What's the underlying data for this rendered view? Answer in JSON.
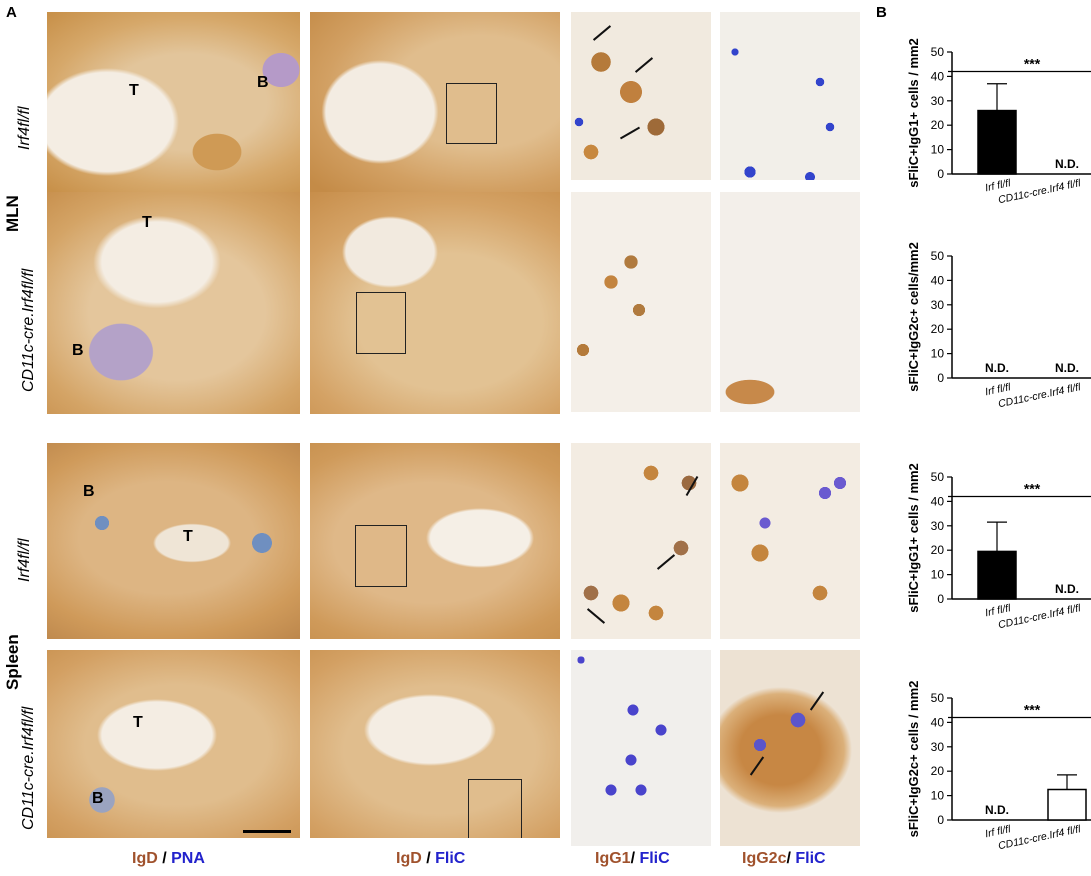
{
  "panel_a_label": "A",
  "panel_b_label": "B",
  "groups": {
    "mln": "MLN",
    "spleen": "Spleen"
  },
  "rows": [
    {
      "genotype": "Irf4fl/fl"
    },
    {
      "genotype": "CD11c-cre.Irf4fl/fl"
    },
    {
      "genotype": "Irf4fl/fl"
    },
    {
      "genotype": "CD11c-cre.Irf4fl/fl"
    }
  ],
  "region_labels": {
    "t_zone": "T",
    "b_zone": "B"
  },
  "column_labels": [
    {
      "first": "IgD",
      "sep": " / ",
      "second": "PNA"
    },
    {
      "first": "IgD",
      "sep": " / ",
      "second": "FliC"
    },
    {
      "first": "IgG1",
      "sep": "/ ",
      "second": "FliC"
    },
    {
      "first": "IgG2c",
      "sep": "/ ",
      "second": "FliC"
    }
  ],
  "colors": {
    "igd_brown": "#a0522d",
    "stain_blue": "#2222cc",
    "tissue_tan": "#c8914a"
  },
  "chart_data": [
    {
      "type": "bar",
      "ylabel": "sFliC+IgG1+ cells / mm2",
      "ylim": [
        0,
        50
      ],
      "yticks": [
        0,
        10,
        20,
        30,
        40,
        50
      ],
      "categories": [
        "Irf fl/fl",
        "CD11c-cre.Irf4 fl/fl"
      ],
      "values": [
        26,
        0
      ],
      "errors": [
        11,
        0
      ],
      "fills": [
        "#000000",
        "#ffffff"
      ],
      "nd": [
        "",
        "N.D."
      ],
      "significance": "***"
    },
    {
      "type": "bar",
      "ylabel": "sFliC+IgG2c+ cells/mm2",
      "ylim": [
        0,
        50
      ],
      "yticks": [
        0,
        10,
        20,
        30,
        40,
        50
      ],
      "categories": [
        "Irf fl/fl",
        "CD11c-cre.Irf4 fl/fl"
      ],
      "values": [
        0,
        0
      ],
      "errors": [
        0,
        0
      ],
      "fills": [
        "#000000",
        "#ffffff"
      ],
      "nd": [
        "N.D.",
        "N.D."
      ],
      "significance": ""
    },
    {
      "type": "bar",
      "ylabel": "sFliC+IgG1+ cells / mm2",
      "ylim": [
        0,
        50
      ],
      "yticks": [
        0,
        10,
        20,
        30,
        40,
        50
      ],
      "categories": [
        "Irf fl/fl",
        "CD11c-cre.Irf4 fl/fl"
      ],
      "values": [
        19.5,
        0
      ],
      "errors": [
        12,
        0
      ],
      "fills": [
        "#000000",
        "#ffffff"
      ],
      "nd": [
        "",
        "N.D."
      ],
      "significance": "***"
    },
    {
      "type": "bar",
      "ylabel": "sFliC+IgG2c+ cells / mm2",
      "ylim": [
        0,
        50
      ],
      "yticks": [
        0,
        10,
        20,
        30,
        40,
        50
      ],
      "categories": [
        "Irf fl/fl",
        "CD11c-cre.Irf4 fl/fl"
      ],
      "values": [
        0,
        12.5
      ],
      "errors": [
        0,
        6
      ],
      "fills": [
        "#000000",
        "#ffffff"
      ],
      "nd": [
        "N.D.",
        ""
      ],
      "significance": "***"
    }
  ]
}
